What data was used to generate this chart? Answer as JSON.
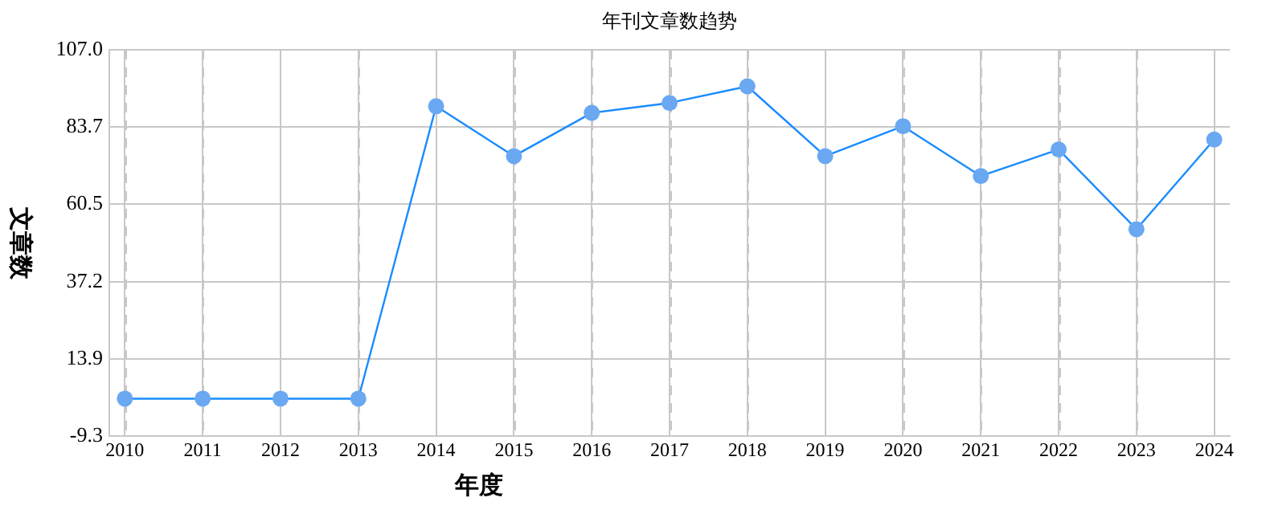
{
  "chart_data": {
    "type": "line",
    "title": "年刊文章数趋势",
    "xlabel": "年度",
    "ylabel": "文章数",
    "categories": [
      "2010",
      "2011",
      "2012",
      "2013",
      "2014",
      "2015",
      "2016",
      "2017",
      "2018",
      "2019",
      "2020",
      "2021",
      "2022",
      "2023",
      "2024"
    ],
    "series": [
      {
        "color": "#1a8cff",
        "values": [
          2,
          2,
          2,
          2,
          90,
          75,
          88,
          91,
          96,
          75,
          84,
          69,
          77,
          53,
          80
        ]
      }
    ],
    "ylim": [
      -9.3,
      107.0
    ],
    "yticks": [
      -9.3,
      13.9,
      37.2,
      60.5,
      83.7,
      {
        "value": 107.0,
        "label": "107.0"
      }
    ],
    "grid": true,
    "marker": "circle",
    "line_style": "solid",
    "legend": false
  }
}
